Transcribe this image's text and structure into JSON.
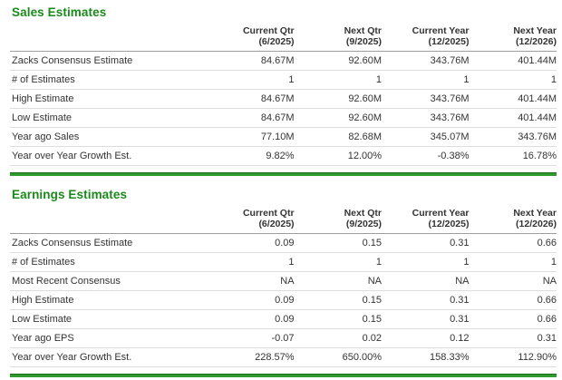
{
  "colors": {
    "background": "#ffffff",
    "text": "#333333",
    "title_green": "#1a8a1a",
    "bar_green": "#2f9b2f",
    "bar_green_dark": "#1a6b1a",
    "header_border": "#9e9e9e",
    "row_border": "#dddddd"
  },
  "sections": [
    {
      "title": "Sales Estimates",
      "columns": [
        {
          "period": "Current Qtr",
          "date": "(6/2025)"
        },
        {
          "period": "Next Qtr",
          "date": "(9/2025)"
        },
        {
          "period": "Current Year",
          "date": "(12/2025)"
        },
        {
          "period": "Next Year",
          "date": "(12/2026)"
        }
      ],
      "rows": [
        {
          "label": "Zacks Consensus Estimate",
          "values": [
            "84.67M",
            "92.60M",
            "343.76M",
            "401.44M"
          ]
        },
        {
          "label": "# of Estimates",
          "values": [
            "1",
            "1",
            "1",
            "1"
          ]
        },
        {
          "label": "High Estimate",
          "values": [
            "84.67M",
            "92.60M",
            "343.76M",
            "401.44M"
          ]
        },
        {
          "label": "Low Estimate",
          "values": [
            "84.67M",
            "92.60M",
            "343.76M",
            "401.44M"
          ]
        },
        {
          "label": "Year ago Sales",
          "values": [
            "77.10M",
            "82.68M",
            "345.07M",
            "343.76M"
          ]
        },
        {
          "label": "Year over Year Growth Est.",
          "values": [
            "9.82%",
            "12.00%",
            "-0.38%",
            "16.78%"
          ]
        }
      ]
    },
    {
      "title": "Earnings Estimates",
      "columns": [
        {
          "period": "Current Qtr",
          "date": "(6/2025)"
        },
        {
          "period": "Next Qtr",
          "date": "(9/2025)"
        },
        {
          "period": "Current Year",
          "date": "(12/2025)"
        },
        {
          "period": "Next Year",
          "date": "(12/2026)"
        }
      ],
      "rows": [
        {
          "label": "Zacks Consensus Estimate",
          "values": [
            "0.09",
            "0.15",
            "0.31",
            "0.66"
          ]
        },
        {
          "label": "# of Estimates",
          "values": [
            "1",
            "1",
            "1",
            "1"
          ]
        },
        {
          "label": "Most Recent Consensus",
          "values": [
            "NA",
            "NA",
            "NA",
            "NA"
          ]
        },
        {
          "label": "High Estimate",
          "values": [
            "0.09",
            "0.15",
            "0.31",
            "0.66"
          ]
        },
        {
          "label": "Low Estimate",
          "values": [
            "0.09",
            "0.15",
            "0.31",
            "0.66"
          ]
        },
        {
          "label": "Year ago EPS",
          "values": [
            "-0.07",
            "0.02",
            "0.12",
            "0.31"
          ]
        },
        {
          "label": "Year over Year Growth Est.",
          "values": [
            "228.57%",
            "650.00%",
            "158.33%",
            "112.90%"
          ]
        }
      ]
    }
  ]
}
